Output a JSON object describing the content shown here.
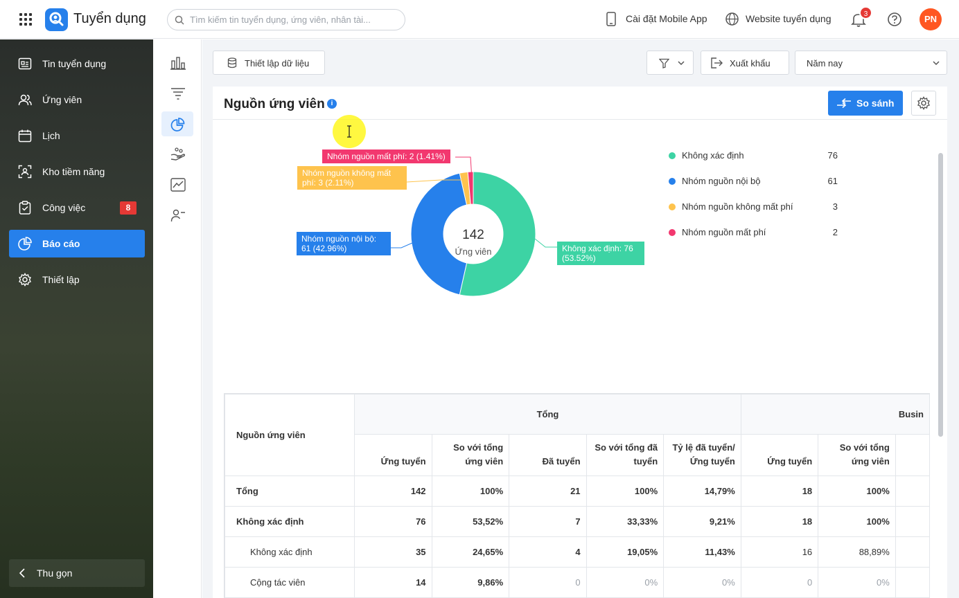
{
  "app": {
    "title": "Tuyển dụng"
  },
  "search": {
    "placeholder": "Tìm kiếm tin tuyển dụng, ứng viên, nhân tài..."
  },
  "topbar": {
    "mobile_app": "Cài đặt Mobile App",
    "website": "Website tuyển dụng",
    "notification_count": "3",
    "avatar_initials": "PN"
  },
  "sidebar": {
    "items": [
      {
        "label": "Tin tuyển dụng",
        "icon": "job-post-icon"
      },
      {
        "label": "Ứng viên",
        "icon": "users-icon"
      },
      {
        "label": "Lịch",
        "icon": "calendar-icon"
      },
      {
        "label": "Kho tiềm năng",
        "icon": "talent-pool-icon"
      },
      {
        "label": "Công việc",
        "icon": "task-icon",
        "badge": "8"
      },
      {
        "label": "Báo cáo",
        "icon": "pie-chart-icon",
        "active": true
      },
      {
        "label": "Thiết lập",
        "icon": "gear-icon"
      }
    ],
    "collapse": "Thu gọn"
  },
  "toolbar": {
    "data_setup": "Thiết lập dữ liệu",
    "export": "Xuất khẩu",
    "period": "Năm nay"
  },
  "report": {
    "title": "Nguồn ứng viên",
    "compare": "So sánh"
  },
  "chart_data": {
    "type": "pie",
    "variant": "donut",
    "center_value": "142",
    "center_label": "Ứng viên",
    "labels": [
      "Không xác định",
      "Nhóm nguồn nội bộ",
      "Nhóm nguồn không mất phí",
      "Nhóm nguồn mất phí"
    ],
    "values": [
      76,
      61,
      3,
      2
    ],
    "colors": [
      "#3dd3a4",
      "#2680eb",
      "#fec34d",
      "#f2386f"
    ],
    "slice_labels": [
      "Không xác định: 76 (53.52%)",
      "Nhóm nguồn nội bộ: 61 (42.96%)",
      "Nhóm nguồn không mất phí: 3 (2.11%)",
      "Nhóm nguồn mất phí: 2 (1.41%)"
    ],
    "legend": "right"
  },
  "table": {
    "corner": "Nguồn ứng viên",
    "group_total": "Tổng",
    "group_business": "Busin",
    "columns": [
      "Ứng tuyển",
      "So với tổng ứng viên",
      "Đã tuyển",
      "So với tổng đã tuyển",
      "Tỷ lệ đã tuyển/ Ứng tuyển",
      "Ứng tuyển",
      "So với tổng ứng viên"
    ],
    "rows": [
      {
        "name": "Tổng",
        "level": 0,
        "cells": [
          "142",
          "100%",
          "21",
          "100%",
          "14,79%",
          "18",
          "100%"
        ]
      },
      {
        "name": "Không xác định",
        "level": 0,
        "cells": [
          "76",
          "53,52%",
          "7",
          "33,33%",
          "9,21%",
          "18",
          "100%"
        ]
      },
      {
        "name": "Không xác định",
        "level": 1,
        "cells": [
          "35",
          "24,65%",
          "4",
          "19,05%",
          "11,43%",
          "16",
          "88,89%"
        ]
      },
      {
        "name": "Cộng tác viên",
        "level": 1,
        "cells": [
          "14",
          "9,86%",
          "0",
          "0%",
          "0%",
          "0",
          "0%"
        ]
      }
    ]
  }
}
